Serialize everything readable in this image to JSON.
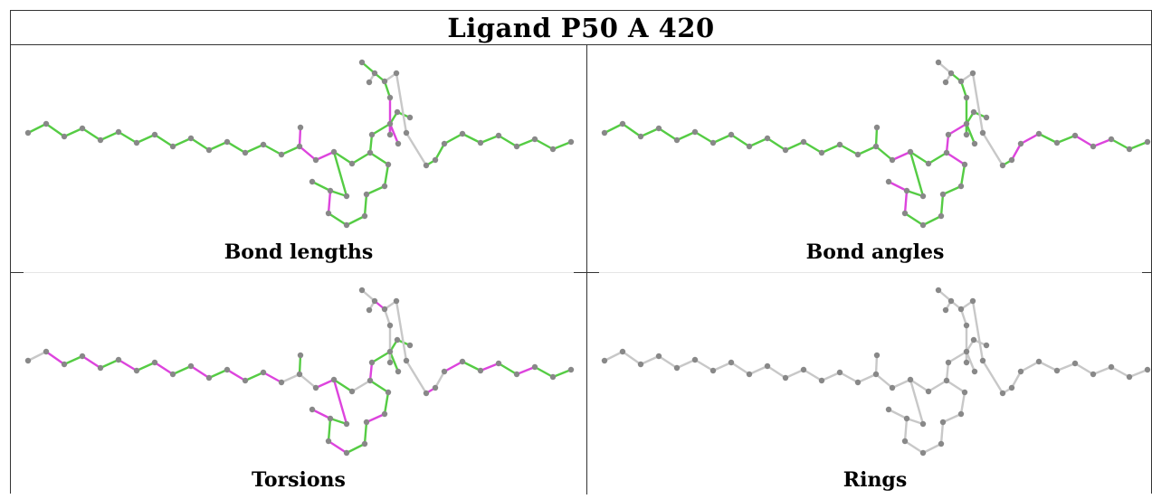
{
  "title": "Ligand P50 A 420",
  "panels": [
    {
      "caption": "Bond lengths"
    },
    {
      "caption": "Bond angles"
    },
    {
      "caption": "Torsions"
    },
    {
      "caption": "Rings"
    }
  ],
  "colors": {
    "ok": "#55cc44",
    "outlier": "#dd44dd",
    "neutral": "#c8c8c8",
    "atom": "#888888"
  }
}
